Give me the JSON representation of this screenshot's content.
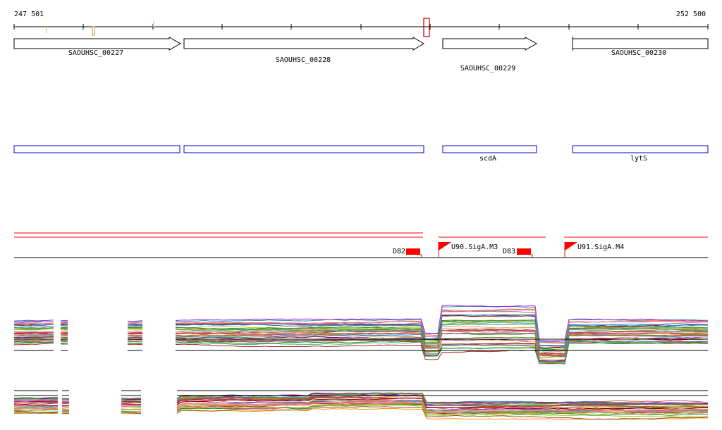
{
  "coordinates": {
    "start": "247 501",
    "end": "252 500"
  },
  "colors": {
    "background": "#ffffff",
    "axis": "#000000",
    "gene_outline": "#000000",
    "protein_outline": "#0000cc",
    "feature": "#ff0000",
    "marker": "#aa0000"
  },
  "genes": [
    {
      "id": "SAOUHSC_00227",
      "label": "SAOUHSC_00227",
      "strand": "+"
    },
    {
      "id": "SAOUHSC_00228",
      "label": "SAOUHSC_00228",
      "strand": "+"
    },
    {
      "id": "SAOUHSC_00229",
      "label": "SAOUHSC_00229",
      "strand": "+"
    },
    {
      "id": "SAOUHSC_00230",
      "label": "SAOUHSC_00230",
      "strand": "+"
    }
  ],
  "proteins": [
    {
      "gene": "SAOUHSC_00227",
      "name": ""
    },
    {
      "gene": "SAOUHSC_00228",
      "name": ""
    },
    {
      "gene": "SAOUHSC_00229",
      "name": "scdA"
    },
    {
      "gene": "SAOUHSC_00230",
      "name": "lytS"
    }
  ],
  "features": [
    {
      "type": "terminator",
      "label": "D82"
    },
    {
      "type": "promoter",
      "label": "U90.SigA.M3"
    },
    {
      "type": "terminator",
      "label": "D83"
    },
    {
      "type": "promoter",
      "label": "U91.SigA.M4"
    }
  ],
  "tracks": [
    {
      "name": "expression-track-1"
    },
    {
      "name": "expression-track-2"
    }
  ]
}
